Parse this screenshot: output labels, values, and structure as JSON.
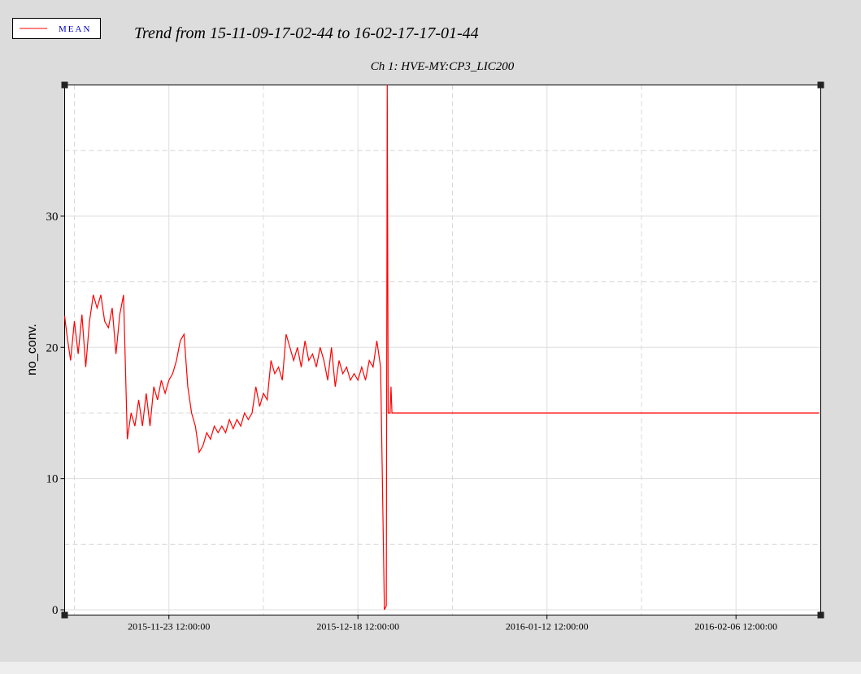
{
  "chart_data": {
    "type": "line",
    "title": "Trend from 15-11-09-17-02-44 to 16-02-17-17-01-44",
    "subtitle": "Ch 1: HVE-MY:CP3_LIC200",
    "y_label": "no_conv.",
    "x": [
      "2015-11-09 17:02:44",
      "2015-11-10 00:00:00",
      "2015-11-10 12:00:00",
      "2015-11-11 00:00:00",
      "2015-11-11 12:00:00",
      "2015-11-12 00:00:00",
      "2015-11-12 12:00:00",
      "2015-11-13 00:00:00",
      "2015-11-13 12:00:00",
      "2015-11-14 00:00:00",
      "2015-11-14 12:00:00",
      "2015-11-15 00:00:00",
      "2015-11-15 12:00:00",
      "2015-11-16 00:00:00",
      "2015-11-16 12:00:00",
      "2015-11-17 00:00:00",
      "2015-11-17 12:00:00",
      "2015-11-18 00:00:00",
      "2015-11-18 12:00:00",
      "2015-11-19 00:00:00",
      "2015-11-19 12:00:00",
      "2015-11-20 00:00:00",
      "2015-11-20 12:00:00",
      "2015-11-21 00:00:00",
      "2015-11-21 12:00:00",
      "2015-11-22 00:00:00",
      "2015-11-22 12:00:00",
      "2015-11-23 00:00:00",
      "2015-11-23 12:00:00",
      "2015-11-24 00:00:00",
      "2015-11-24 12:00:00",
      "2015-11-25 00:00:00",
      "2015-11-25 12:00:00",
      "2015-11-26 00:00:00",
      "2015-11-26 12:00:00",
      "2015-11-27 00:00:00",
      "2015-11-27 12:00:00",
      "2015-11-28 00:00:00",
      "2015-11-28 12:00:00",
      "2015-11-29 00:00:00",
      "2015-11-29 12:00:00",
      "2015-11-30 00:00:00",
      "2015-11-30 12:00:00",
      "2015-12-01 00:00:00",
      "2015-12-01 12:00:00",
      "2015-12-02 00:00:00",
      "2015-12-02 12:00:00",
      "2015-12-03 00:00:00",
      "2015-12-03 12:00:00",
      "2015-12-04 00:00:00",
      "2015-12-04 12:00:00",
      "2015-12-05 00:00:00",
      "2015-12-05 12:00:00",
      "2015-12-06 00:00:00",
      "2015-12-06 12:00:00",
      "2015-12-07 00:00:00",
      "2015-12-07 12:00:00",
      "2015-12-08 00:00:00",
      "2015-12-08 12:00:00",
      "2015-12-09 00:00:00",
      "2015-12-09 12:00:00",
      "2015-12-10 00:00:00",
      "2015-12-10 12:00:00",
      "2015-12-11 00:00:00",
      "2015-12-11 12:00:00",
      "2015-12-12 00:00:00",
      "2015-12-12 12:00:00",
      "2015-12-13 00:00:00",
      "2015-12-13 12:00:00",
      "2015-12-14 00:00:00",
      "2015-12-14 12:00:00",
      "2015-12-15 00:00:00",
      "2015-12-15 12:00:00",
      "2015-12-16 00:00:00",
      "2015-12-16 12:00:00",
      "2015-12-17 00:00:00",
      "2015-12-17 12:00:00",
      "2015-12-18 00:00:00",
      "2015-12-18 12:00:00",
      "2015-12-19 00:00:00",
      "2015-12-19 12:00:00",
      "2015-12-20 00:00:00",
      "2015-12-20 12:00:00",
      "2015-12-21 00:00:00",
      "2015-12-21 12:00:00",
      "2015-12-22 00:00:00",
      "2015-12-22 06:00:00",
      "2015-12-22 09:00:00",
      "2015-12-22 12:00:00",
      "2015-12-22 18:00:00",
      "2015-12-22 21:00:00",
      "2015-12-23 00:00:00",
      "2016-02-17 12:00:00"
    ],
    "series": [
      {
        "name": "MEAN",
        "color": "#ff0000",
        "values": [
          22.4,
          21,
          19,
          22,
          19.5,
          22.5,
          18.5,
          22,
          24,
          23,
          24,
          22,
          21.5,
          23,
          19.5,
          22.5,
          24,
          13,
          15,
          14,
          16,
          14,
          16.5,
          14,
          17,
          16,
          17.5,
          16.5,
          17.5,
          18,
          19,
          20.5,
          21,
          17,
          15,
          14,
          12,
          12.5,
          13.5,
          13,
          14,
          13.5,
          14,
          13.5,
          14.5,
          13.8,
          14.5,
          14,
          15,
          14.5,
          15,
          17,
          15.5,
          16.5,
          16,
          19,
          18,
          18.5,
          17.5,
          21,
          20,
          19,
          20,
          18.5,
          20.5,
          19,
          19.5,
          18.5,
          20,
          19,
          17.5,
          20,
          17,
          19,
          18,
          18.5,
          17.5,
          18,
          17.5,
          18.5,
          17.5,
          19,
          18.5,
          20.5,
          18.5,
          0,
          0.3,
          40,
          15,
          15,
          17,
          15,
          15
        ]
      }
    ],
    "xlim": [
      "2015-11-09 17:02:44",
      "2016-02-17 17:01:44"
    ],
    "xticks": [
      "2015-11-23 12:00:00",
      "2015-12-18 12:00:00",
      "2016-01-12 12:00:00",
      "2016-02-06 12:00:00"
    ],
    "x_minor_ticks": [
      "2015-11-11 00:00:00",
      "2015-12-06 00:00:00",
      "2015-12-31 00:00:00",
      "2016-01-25 00:00:00"
    ],
    "ylim": [
      -0.4,
      40
    ],
    "yticks": [
      0,
      10,
      20,
      30
    ],
    "y_minor_ticks": [
      5,
      15,
      25,
      35
    ],
    "grid": true
  }
}
